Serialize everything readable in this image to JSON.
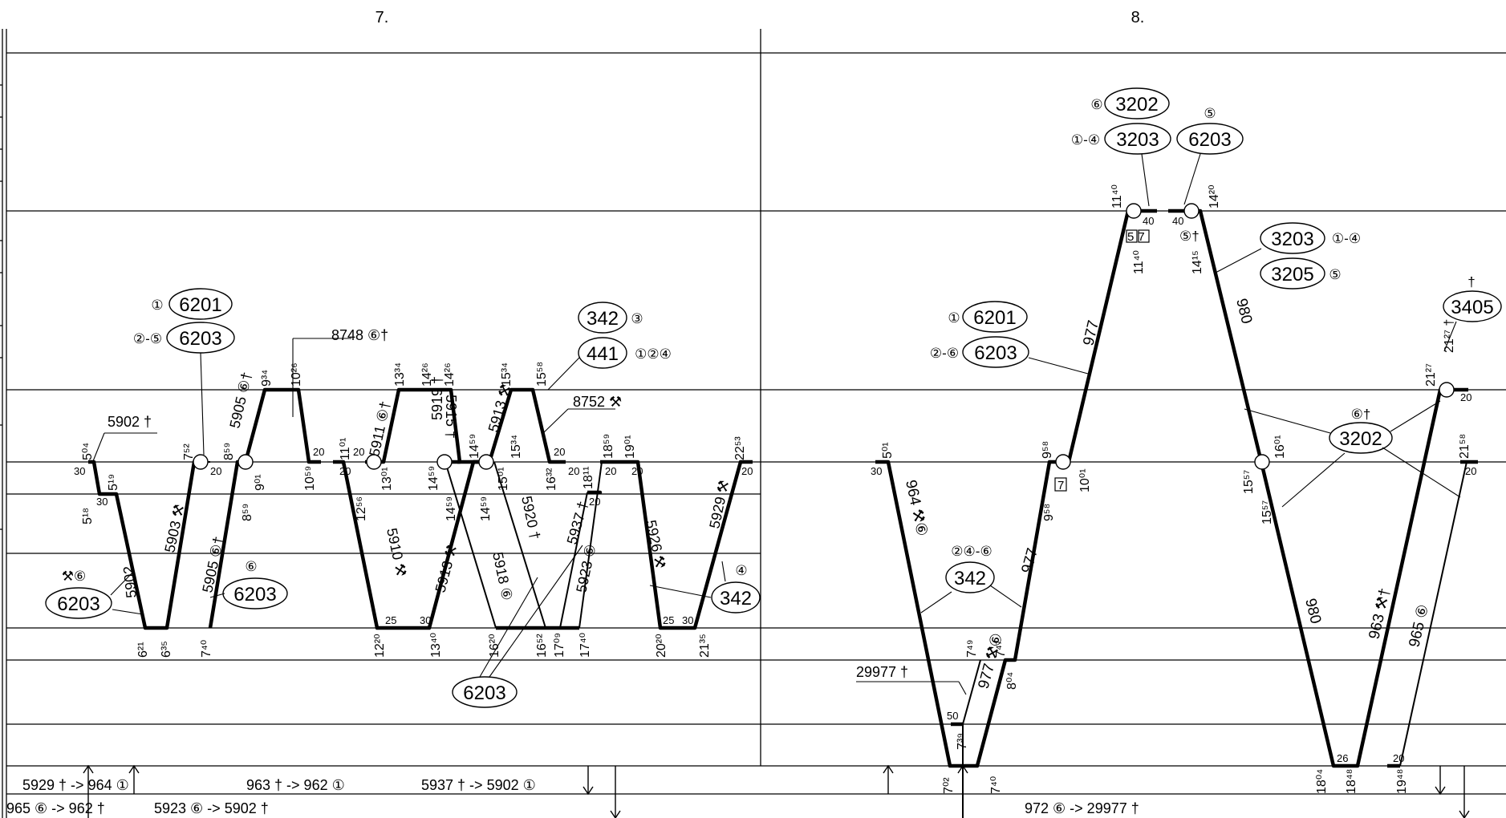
{
  "columns": {
    "seven": "7.",
    "eight": "8."
  },
  "left": {
    "ovals": {
      "a": "6201",
      "a_tag": "①",
      "b": "6203",
      "b_tag": "②-⑤",
      "c": "342",
      "c_tag": "③",
      "d": "441",
      "d_tag": "①②④",
      "e": "6203",
      "e_tag": "⚒⑥",
      "f": "6203",
      "f_tag": "⑥",
      "g": "342",
      "g_tag": "④",
      "h": "6203"
    },
    "notes": {
      "n1": "5902 †",
      "n2": "8748 ⑥†",
      "n3": "8752 ⚒"
    },
    "trains": {
      "t5902a": "5902",
      "t5903": "5903 ⚒",
      "t5905a": "5905 ⑥†",
      "t5905b": "5905 ⑥†",
      "t5910": "5910 ⚒",
      "t5911": "5911 ⑥†",
      "t5913a": "5913 ⚒",
      "t5913b": "5913 ⚒",
      "t5918": "5918 ⑥",
      "t5920": "5920 †",
      "t5923": "5923 ⑥",
      "t5926": "5926 ⚒",
      "t5929": "5929 ⚒",
      "t5937": "5937 †",
      "t5915": "5915 †",
      "t5914": "5919 †"
    },
    "times": [
      "5⁰⁴",
      "5¹⁹",
      "5¹⁸",
      "6²¹",
      "6³⁵",
      "7⁴⁰",
      "7⁵²",
      "8⁵⁹",
      "8⁵⁹",
      "9⁰¹",
      "9³⁴",
      "10²⁶",
      "10⁵⁹",
      "11⁰¹",
      "12⁵⁶",
      "13⁰¹",
      "13³⁴",
      "14²⁶",
      "14²⁶",
      "14⁵⁹",
      "14⁵⁹",
      "14⁵⁹",
      "15⁰¹",
      "15³⁴",
      "15⁵⁸",
      "16³²",
      "18¹¹",
      "18⁵⁹",
      "19⁰¹",
      "22⁵³",
      "12²⁰",
      "13⁴⁰",
      "16²⁰",
      "16⁵²",
      "17⁰⁹",
      "17⁴⁰",
      "20²⁰",
      "21³⁵",
      "14⁵⁹",
      "15³⁴"
    ],
    "mins": [
      "30",
      "30",
      "20",
      "20",
      "20",
      "20",
      "20",
      "20",
      "20",
      "20",
      "25",
      "30",
      "25",
      "30",
      "20",
      "20"
    ]
  },
  "right": {
    "ovals": {
      "a": "3202",
      "a_tag": "⑥",
      "b": "3203",
      "b_tag": "①-④",
      "c": "6203",
      "c_tag": "⑤",
      "d": "3203",
      "d_tag": "①-④",
      "e": "3205",
      "e_tag": "⑤",
      "f": "3405",
      "f_tag": "†",
      "g": "6201",
      "g_tag": "①",
      "h": "6203",
      "h_tag": "②-⑥",
      "i": "3202",
      "i_tag": "⑥†",
      "j": "342",
      "j_tag": "②④-⑥"
    },
    "notes": {
      "n1": "29977 †"
    },
    "trains": {
      "t977a": "977",
      "t977b": "977",
      "t977c": "977 ⚒⑥",
      "t980a": "980",
      "t980b": "980",
      "t964": "964 ⚒⑥",
      "t963": "963 ⚒†",
      "t965": "965 ⑥"
    },
    "times": [
      "5⁰¹",
      "9⁵⁸",
      "9⁵⁸",
      "10⁰¹",
      "11⁴⁰",
      "11⁴⁰",
      "14²⁰",
      "14¹⁵",
      "15⁵⁷",
      "15⁵⁷",
      "16⁰¹",
      "21²⁷",
      "21²⁷ †",
      "21⁵⁸",
      "7⁴⁹",
      "7⁴⁷",
      "8⁰⁴",
      "7³⁹",
      "7⁰²",
      "7⁴⁰",
      "18⁰⁴",
      "18⁴⁸",
      "19⁴⁸"
    ],
    "mins": [
      "30",
      "40",
      "40",
      "50",
      "20",
      "20",
      "26",
      "20"
    ],
    "boxes": {
      "b1": "57",
      "b2": "7",
      "b3": "⑤†"
    }
  },
  "footer": {
    "r1a": "5929 † -> 964 ①",
    "r1b": "963 † -> 962 ①",
    "r1c": "5937 † -> 5902 ①",
    "r2a": "965 ⑥ -> 962 †",
    "r2b": "5923 ⑥ -> 5902 †",
    "r2c": "972 ⑥ -> 29977 †"
  }
}
